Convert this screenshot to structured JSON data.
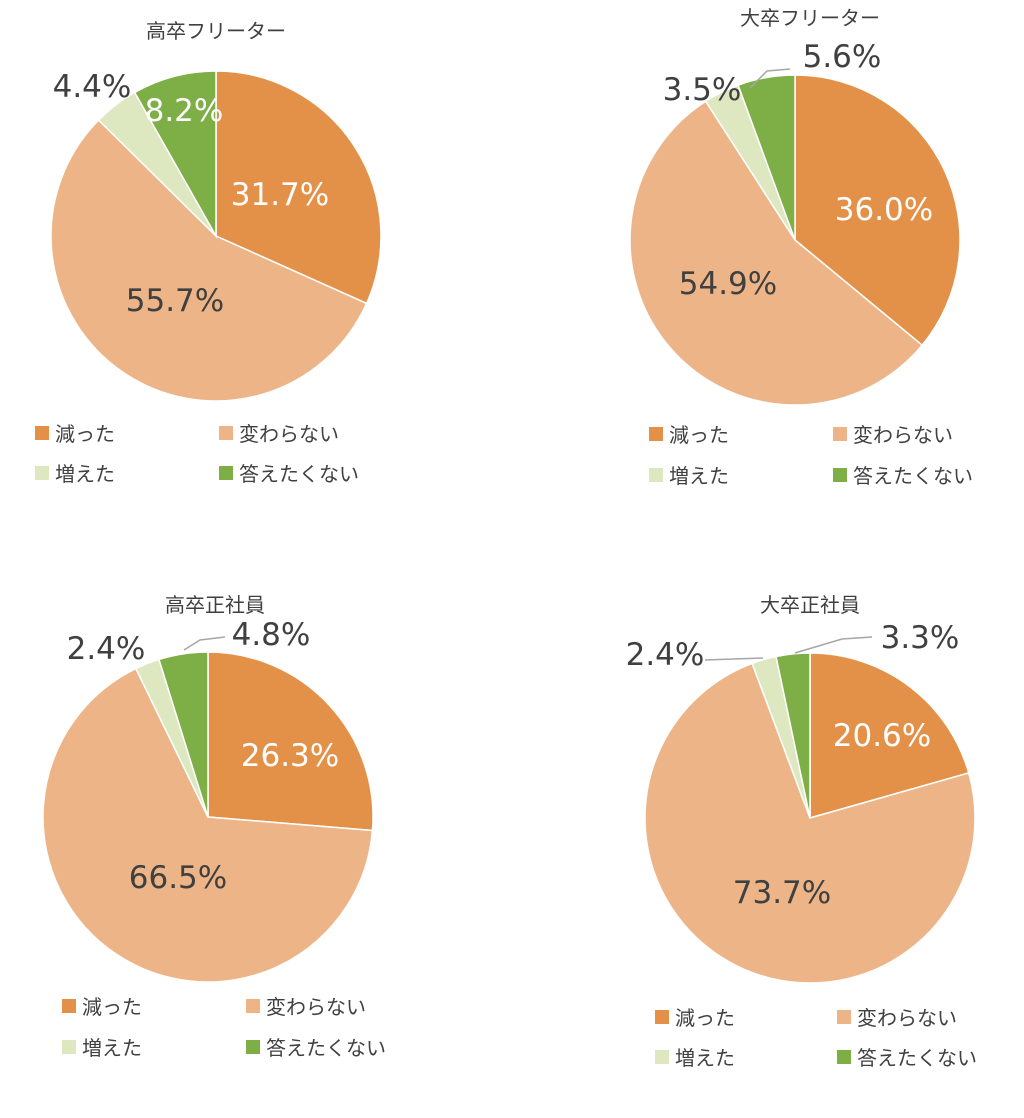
{
  "colors": {
    "decreased": "#E39148",
    "unchanged": "#EDB587",
    "increased": "#DDE8C0",
    "no_answer": "#7EAE46",
    "label_dark": "#404040",
    "label_light": "#ffffff",
    "leader": "#a6a6a6"
  },
  "legend": [
    "減った",
    "変わらない",
    "増えた",
    "答えたくない"
  ],
  "chart_data": [
    {
      "type": "pie",
      "title": "高卒フリーター",
      "categories": [
        "減った",
        "変わらない",
        "増えた",
        "答えたくない"
      ],
      "values": [
        31.7,
        55.7,
        4.4,
        8.2
      ],
      "labels": [
        "31.7%",
        "55.7%",
        "4.4%",
        "8.2%"
      ],
      "legend_position": "bottom"
    },
    {
      "type": "pie",
      "title": "大卒フリーター",
      "categories": [
        "減った",
        "変わらない",
        "増えた",
        "答えたくない"
      ],
      "values": [
        36.0,
        54.9,
        3.5,
        5.6
      ],
      "labels": [
        "36.0%",
        "54.9%",
        "3.5%",
        "5.6%"
      ],
      "legend_position": "bottom"
    },
    {
      "type": "pie",
      "title": "高卒正社員",
      "categories": [
        "減った",
        "変わらない",
        "増えた",
        "答えたくない"
      ],
      "values": [
        26.3,
        66.5,
        2.4,
        4.8
      ],
      "labels": [
        "26.3%",
        "66.5%",
        "2.4%",
        "4.8%"
      ],
      "legend_position": "bottom"
    },
    {
      "type": "pie",
      "title": "大卒正社員",
      "categories": [
        "減った",
        "変わらない",
        "増えた",
        "答えたくない"
      ],
      "values": [
        20.6,
        73.7,
        2.4,
        3.3
      ],
      "labels": [
        "20.6%",
        "73.7%",
        "2.4%",
        "3.3%"
      ],
      "legend_position": "bottom"
    }
  ]
}
